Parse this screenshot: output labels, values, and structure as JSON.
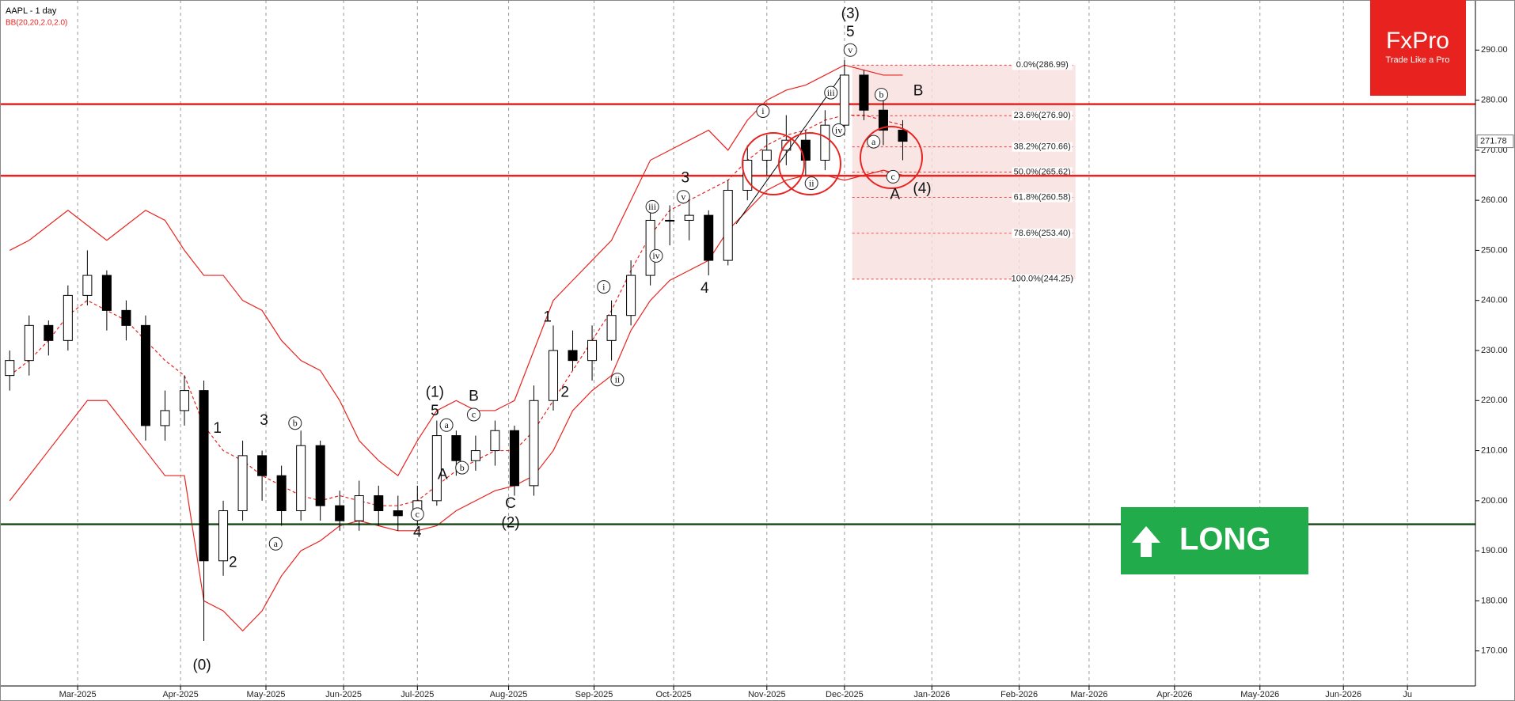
{
  "chart_data": {
    "type": "candlestick",
    "title": "AAPL - 1 day",
    "subtitle": "BB(20,20,2.0,2.0)",
    "categories": [
      null,
      null,
      null,
      null,
      null,
      null,
      null,
      null,
      null,
      null,
      null,
      null,
      null,
      null,
      null,
      null,
      null,
      null,
      null,
      null,
      null,
      null,
      null,
      null,
      null,
      null,
      null,
      null,
      null,
      null,
      null,
      null,
      null,
      null,
      null,
      null,
      null,
      null,
      null,
      null,
      null,
      null,
      null,
      null,
      null,
      null,
      null
    ],
    "open": [
      225,
      228,
      235,
      232,
      241,
      245,
      238,
      235,
      215,
      218,
      222,
      188,
      198,
      209,
      205,
      198,
      211,
      199,
      196,
      201,
      198,
      197,
      200,
      213,
      208,
      210,
      214,
      203,
      220,
      230,
      228,
      232,
      237,
      245,
      256,
      256,
      257,
      248,
      262,
      268,
      270,
      272,
      268,
      275,
      285,
      278,
      274
    ],
    "high": [
      230,
      237,
      236,
      243,
      250,
      246,
      240,
      237,
      222,
      225,
      224,
      200,
      212,
      210,
      207,
      214,
      212,
      202,
      204,
      203,
      201,
      203,
      216,
      214,
      213,
      216,
      215,
      223,
      235,
      234,
      235,
      240,
      248,
      259,
      259,
      260,
      258,
      264,
      271,
      273,
      277,
      274,
      278,
      288,
      286,
      280,
      276
    ],
    "low": [
      222,
      225,
      229,
      230,
      239,
      234,
      232,
      212,
      212,
      215,
      172,
      185,
      196,
      200,
      195,
      196,
      196,
      194,
      194,
      195,
      194,
      195,
      199,
      205,
      206,
      207,
      201,
      201,
      218,
      226,
      224,
      228,
      235,
      243,
      251,
      252,
      245,
      247,
      260,
      265,
      267,
      265,
      266,
      273,
      276,
      271,
      268
    ],
    "close": [
      228,
      235,
      232,
      241,
      245,
      238,
      235,
      215,
      218,
      222,
      188,
      198,
      209,
      205,
      198,
      211,
      199,
      196,
      201,
      198,
      197,
      200,
      213,
      208,
      210,
      214,
      203,
      220,
      230,
      228,
      232,
      237,
      245,
      256,
      256,
      257,
      248,
      262,
      268,
      270,
      272,
      268,
      275,
      285,
      278,
      274,
      271.78
    ],
    "bollinger": {
      "color": "#e8231f",
      "upper": [
        250,
        252,
        255,
        258,
        255,
        252,
        255,
        258,
        256,
        250,
        245,
        245,
        240,
        238,
        232,
        228,
        226,
        220,
        212,
        208,
        205,
        212,
        218,
        220,
        218,
        218,
        220,
        230,
        240,
        244,
        248,
        252,
        260,
        268,
        270,
        272,
        274,
        270,
        276,
        280,
        282,
        283,
        285,
        287,
        286,
        285,
        285
      ],
      "middle": [
        225,
        228,
        232,
        237,
        240,
        238,
        236,
        232,
        228,
        225,
        215,
        210,
        208,
        205,
        203,
        201,
        200,
        201,
        200,
        199,
        199,
        200,
        203,
        206,
        208,
        210,
        210,
        214,
        220,
        226,
        232,
        238,
        246,
        253,
        258,
        260,
        262,
        264,
        268,
        271,
        273,
        274,
        276,
        277,
        277,
        276,
        275
      ],
      "lower": [
        200,
        205,
        210,
        215,
        220,
        220,
        215,
        210,
        205,
        205,
        180,
        178,
        174,
        178,
        185,
        190,
        192,
        195,
        196,
        195,
        194,
        194,
        195,
        198,
        200,
        202,
        203,
        205,
        210,
        218,
        222,
        225,
        234,
        240,
        244,
        246,
        248,
        254,
        258,
        262,
        264,
        265,
        265,
        264,
        265,
        266,
        265
      ]
    },
    "hlines": [
      {
        "value": 279.2,
        "color": "#e8231f"
      },
      {
        "value": 264.9,
        "color": "#e8231f"
      },
      {
        "value": 195.3,
        "color": "#1e4d1e"
      }
    ],
    "fib": {
      "x": [
        43.9,
        55.4
      ],
      "levels": [
        {
          "value": 286.99,
          "label": "0.0%(286.99)"
        },
        {
          "value": 276.9,
          "label": "23.6%(276.90)"
        },
        {
          "value": 270.66,
          "label": "38.2%(270.66)"
        },
        {
          "value": 265.62,
          "label": "50.0%(265.62)"
        },
        {
          "value": 260.58,
          "label": "61.8%(260.58)"
        },
        {
          "value": 253.4,
          "label": "78.6%(253.40)"
        },
        {
          "value": 244.25,
          "label": "100.0%(244.25)"
        }
      ]
    },
    "last_price": 271.78,
    "annotations": [
      {
        "text": "(0)",
        "x": 10.4,
        "y": 167.2
      },
      {
        "text": "1",
        "x": 11.2,
        "y": 214.5
      },
      {
        "text": "2",
        "x": 12.0,
        "y": 187.7
      },
      {
        "text": "3",
        "x": 13.6,
        "y": 216.1
      },
      {
        "text": "b",
        "x": 15.2,
        "y": 215.5,
        "circled": true
      },
      {
        "text": "a",
        "x": 14.2,
        "y": 191.4,
        "circled": true
      },
      {
        "text": "4",
        "x": 21.5,
        "y": 193.7
      },
      {
        "text": "c",
        "x": 21.5,
        "y": 197.3,
        "circled": true
      },
      {
        "text": "(1)",
        "x": 22.4,
        "y": 221.7
      },
      {
        "text": "5",
        "x": 22.4,
        "y": 218.0
      },
      {
        "text": "a",
        "x": 23.0,
        "y": 215.1,
        "circled": true
      },
      {
        "text": "A",
        "x": 22.8,
        "y": 205.3
      },
      {
        "text": "b",
        "x": 23.8,
        "y": 206.6,
        "circled": true
      },
      {
        "text": "B",
        "x": 24.4,
        "y": 220.9
      },
      {
        "text": "c",
        "x": 24.4,
        "y": 217.2,
        "circled": true
      },
      {
        "text": "C",
        "x": 26.3,
        "y": 199.5
      },
      {
        "text": "(2)",
        "x": 26.3,
        "y": 195.6
      },
      {
        "text": "1",
        "x": 28.2,
        "y": 236.7
      },
      {
        "text": "2",
        "x": 29.1,
        "y": 221.7
      },
      {
        "text": "i",
        "x": 31.1,
        "y": 242.7,
        "circled": true
      },
      {
        "text": "ii",
        "x": 31.8,
        "y": 224.2,
        "circled": true
      },
      {
        "text": "iii",
        "x": 33.6,
        "y": 258.7,
        "circled": true
      },
      {
        "text": "iv",
        "x": 33.8,
        "y": 248.9,
        "circled": true
      },
      {
        "text": "v",
        "x": 35.2,
        "y": 260.7,
        "circled": true
      },
      {
        "text": "3",
        "x": 35.3,
        "y": 264.5
      },
      {
        "text": "4",
        "x": 36.3,
        "y": 242.5
      },
      {
        "text": "i",
        "x": 39.3,
        "y": 277.8,
        "circled": true
      },
      {
        "text": "ii",
        "x": 41.8,
        "y": 263.4,
        "circled": true
      },
      {
        "text": "iii",
        "x": 42.8,
        "y": 281.5,
        "circled": true
      },
      {
        "text": "iv",
        "x": 43.2,
        "y": 274.0,
        "circled": true
      },
      {
        "text": "v",
        "x": 43.8,
        "y": 290.0,
        "circled": true
      },
      {
        "text": "5",
        "x": 43.8,
        "y": 293.7
      },
      {
        "text": "(3)",
        "x": 43.8,
        "y": 297.3
      },
      {
        "text": "b",
        "x": 45.4,
        "y": 281.1,
        "circled": true
      },
      {
        "text": "B",
        "x": 47.3,
        "y": 281.9
      },
      {
        "text": "a",
        "x": 45.0,
        "y": 271.7,
        "circled": true
      },
      {
        "text": "c",
        "x": 46.0,
        "y": 264.7,
        "circled": true
      },
      {
        "text": "A",
        "x": 46.1,
        "y": 261.2
      },
      {
        "text": "(4)",
        "x": 47.5,
        "y": 262.4
      }
    ],
    "xlim": [
      0,
      76
    ],
    "xticks": [
      {
        "value": 4.0,
        "label": "Mar-2025"
      },
      {
        "value": 9.3,
        "label": "Apr-2025"
      },
      {
        "value": 13.7,
        "label": "May-2025"
      },
      {
        "value": 17.7,
        "label": "Jun-2025"
      },
      {
        "value": 21.5,
        "label": "Jul-2025"
      },
      {
        "value": 26.2,
        "label": "Aug-2025"
      },
      {
        "value": 30.6,
        "label": "Sep-2025"
      },
      {
        "value": 34.7,
        "label": "Oct-2025"
      },
      {
        "value": 39.5,
        "label": "Nov-2025"
      },
      {
        "value": 43.5,
        "label": "Dec-2025"
      },
      {
        "value": 48.0,
        "label": "Jan-2026"
      },
      {
        "value": 52.5,
        "label": "Feb-2026"
      },
      {
        "value": 56.1,
        "label": "Mar-2026"
      },
      {
        "value": 60.5,
        "label": "Apr-2026"
      },
      {
        "value": 64.9,
        "label": "May-2026"
      },
      {
        "value": 69.2,
        "label": "Jun-2026"
      },
      {
        "value": 72.5,
        "label": "Ju"
      }
    ],
    "ylim": [
      163,
      300
    ],
    "yticks": [
      {
        "value": 170,
        "label": "170.00"
      },
      {
        "value": 180,
        "label": "180.00"
      },
      {
        "value": 190,
        "label": "190.00"
      },
      {
        "value": 200,
        "label": "200.00"
      },
      {
        "value": 210,
        "label": "210.00"
      },
      {
        "value": 220,
        "label": "220.00"
      },
      {
        "value": 230,
        "label": "230.00"
      },
      {
        "value": 240,
        "label": "240.00"
      },
      {
        "value": 250,
        "label": "250.00"
      },
      {
        "value": 260,
        "label": "260.00"
      },
      {
        "value": 270,
        "label": "270.00"
      },
      {
        "value": 280,
        "label": "280.00"
      },
      {
        "value": 290,
        "label": "290.00"
      }
    ],
    "grid": true
  },
  "logo": {
    "name": "FxPro",
    "tagline": "Trade Like a Pro"
  },
  "signal": "LONG"
}
